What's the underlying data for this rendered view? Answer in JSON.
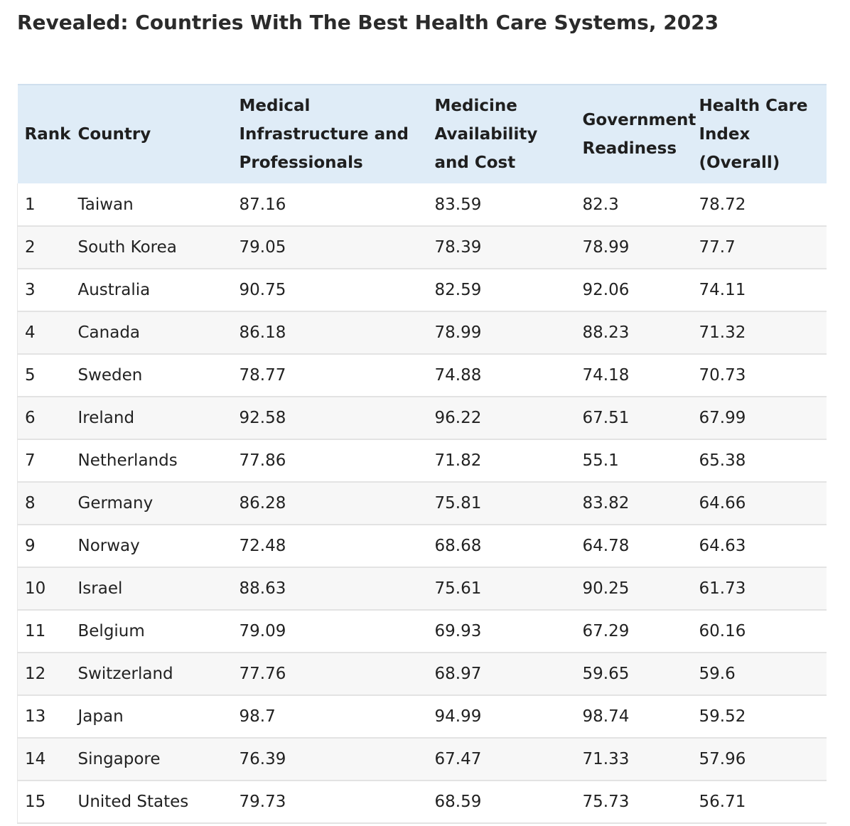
{
  "title": "Revealed: Countries With The Best Health Care Systems, 2023",
  "table": {
    "headers": {
      "rank": "Rank",
      "country": "Country",
      "medical": "Medical Infrastructure and Professionals",
      "medicine": "Medicine Availability and Cost",
      "government": "Government Readiness",
      "index": "Health Care Index (Overall)"
    },
    "rows": [
      {
        "rank": "1",
        "country": "Taiwan",
        "medical": "87.16",
        "medicine": "83.59",
        "government": "82.3",
        "index": "78.72"
      },
      {
        "rank": "2",
        "country": "South Korea",
        "medical": "79.05",
        "medicine": "78.39",
        "government": "78.99",
        "index": "77.7"
      },
      {
        "rank": "3",
        "country": "Australia",
        "medical": "90.75",
        "medicine": "82.59",
        "government": "92.06",
        "index": "74.11"
      },
      {
        "rank": "4",
        "country": "Canada",
        "medical": "86.18",
        "medicine": "78.99",
        "government": "88.23",
        "index": "71.32"
      },
      {
        "rank": "5",
        "country": "Sweden",
        "medical": "78.77",
        "medicine": "74.88",
        "government": "74.18",
        "index": "70.73"
      },
      {
        "rank": "6",
        "country": "Ireland",
        "medical": "92.58",
        "medicine": "96.22",
        "government": "67.51",
        "index": "67.99"
      },
      {
        "rank": "7",
        "country": "Netherlands",
        "medical": "77.86",
        "medicine": "71.82",
        "government": "55.1",
        "index": "65.38"
      },
      {
        "rank": "8",
        "country": "Germany",
        "medical": "86.28",
        "medicine": "75.81",
        "government": "83.82",
        "index": "64.66"
      },
      {
        "rank": "9",
        "country": "Norway",
        "medical": "72.48",
        "medicine": "68.68",
        "government": "64.78",
        "index": "64.63"
      },
      {
        "rank": "10",
        "country": "Israel",
        "medical": "88.63",
        "medicine": "75.61",
        "government": "90.25",
        "index": "61.73"
      },
      {
        "rank": "11",
        "country": "Belgium",
        "medical": "79.09",
        "medicine": "69.93",
        "government": "67.29",
        "index": "60.16"
      },
      {
        "rank": "12",
        "country": "Switzerland",
        "medical": "77.76",
        "medicine": "68.97",
        "government": "59.65",
        "index": "59.6"
      },
      {
        "rank": "13",
        "country": "Japan",
        "medical": "98.7",
        "medicine": "94.99",
        "government": "98.74",
        "index": "59.52"
      },
      {
        "rank": "14",
        "country": "Singapore",
        "medical": "76.39",
        "medicine": "67.47",
        "government": "71.33",
        "index": "57.96"
      },
      {
        "rank": "15",
        "country": "United States",
        "medical": "79.73",
        "medicine": "68.59",
        "government": "75.73",
        "index": "56.71"
      }
    ]
  }
}
